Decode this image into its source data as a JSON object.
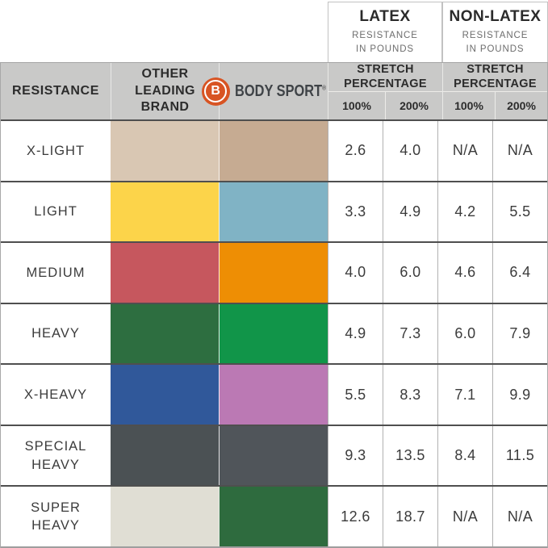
{
  "header": {
    "latex_group": {
      "title": "LATEX",
      "subtitle": "RESISTANCE\nIN POUNDS"
    },
    "nonlatex_group": {
      "title": "NON-LATEX",
      "subtitle": "RESISTANCE\nIN POUNDS"
    },
    "resistance_label": "RESISTANCE",
    "other_brand_label": "OTHER\nLEADING\nBRAND",
    "stretch_label": "STRETCH\nPERCENTAGE",
    "pct100": "100%",
    "pct200": "200%"
  },
  "brand": {
    "logo_letter": "B",
    "name": "BODY SPORT",
    "registered": "®",
    "logo_color": "#d85423"
  },
  "chart_data": {
    "type": "table",
    "column_groups": [
      {
        "label": "LATEX RESISTANCE IN POUNDS",
        "columns": [
          "100%",
          "200%"
        ]
      },
      {
        "label": "NON-LATEX RESISTANCE IN POUNDS",
        "columns": [
          "100%",
          "200%"
        ]
      }
    ],
    "columns": [
      "RESISTANCE",
      "OTHER LEADING BRAND",
      "BODY SPORT",
      "LATEX 100%",
      "LATEX 200%",
      "NON-LATEX 100%",
      "NON-LATEX 200%"
    ],
    "rows": [
      {
        "label": "X-LIGHT",
        "other_color": "#d9c7b3",
        "bodysport_color": "#c6ab92",
        "latex100": "2.6",
        "latex200": "4.0",
        "non100": "N/A",
        "non200": "N/A"
      },
      {
        "label": "LIGHT",
        "other_color": "#fcd44a",
        "bodysport_color": "#80b3c5",
        "latex100": "3.3",
        "latex200": "4.9",
        "non100": "4.2",
        "non200": "5.5"
      },
      {
        "label": "MEDIUM",
        "other_color": "#c6575e",
        "bodysport_color": "#ee8e04",
        "latex100": "4.0",
        "latex200": "6.0",
        "non100": "4.6",
        "non200": "6.4"
      },
      {
        "label": "HEAVY",
        "other_color": "#2d6e40",
        "bodysport_color": "#119549",
        "latex100": "4.9",
        "latex200": "7.3",
        "non100": "6.0",
        "non200": "7.9"
      },
      {
        "label": "X-HEAVY",
        "other_color": "#30589a",
        "bodysport_color": "#bb79b4",
        "latex100": "5.5",
        "latex200": "8.3",
        "non100": "7.1",
        "non200": "9.9"
      },
      {
        "label": "SPECIAL\nHEAVY",
        "other_color": "#4b5154",
        "bodysport_color": "#50555a",
        "latex100": "9.3",
        "latex200": "13.5",
        "non100": "8.4",
        "non200": "11.5"
      },
      {
        "label": "SUPER\nHEAVY",
        "other_color": "#e0ded4",
        "bodysport_color": "#2e6b3e",
        "latex100": "12.6",
        "latex200": "18.7",
        "non100": "N/A",
        "non200": "N/A"
      }
    ]
  }
}
